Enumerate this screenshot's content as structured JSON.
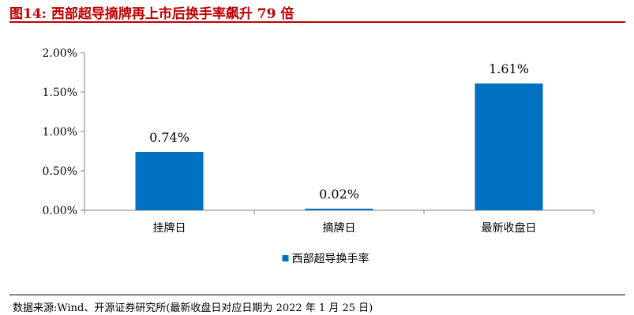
{
  "figure": {
    "title": "图14:  西部超导摘牌再上市后换手率飙升 79 倍",
    "source": "数据来源:Wind、开源证券研究所(最新收盘日对应日期为 2022 年 1 月 25 日)"
  },
  "chart_data": {
    "type": "bar",
    "title": "",
    "xlabel": "",
    "ylabel": "",
    "categories": [
      "挂牌日",
      "摘牌日",
      "最新收盘日"
    ],
    "series": [
      {
        "name": "西部超导换手率",
        "values": [
          0.74,
          0.02,
          1.61
        ],
        "labels": [
          "0.74%",
          "0.02%",
          "1.61%"
        ],
        "color": "#0070c0"
      }
    ],
    "ylim": [
      0,
      2.0
    ],
    "yticks": [
      0,
      0.5,
      1.0,
      1.5,
      2.0
    ],
    "ytick_labels": [
      "0.00%",
      "0.50%",
      "1.00%",
      "1.50%",
      "2.00%"
    ],
    "legend": "bottom-center",
    "grid": false
  },
  "colors": {
    "title": "#c00000",
    "bar": "#0070c0",
    "axis": "#808080"
  }
}
